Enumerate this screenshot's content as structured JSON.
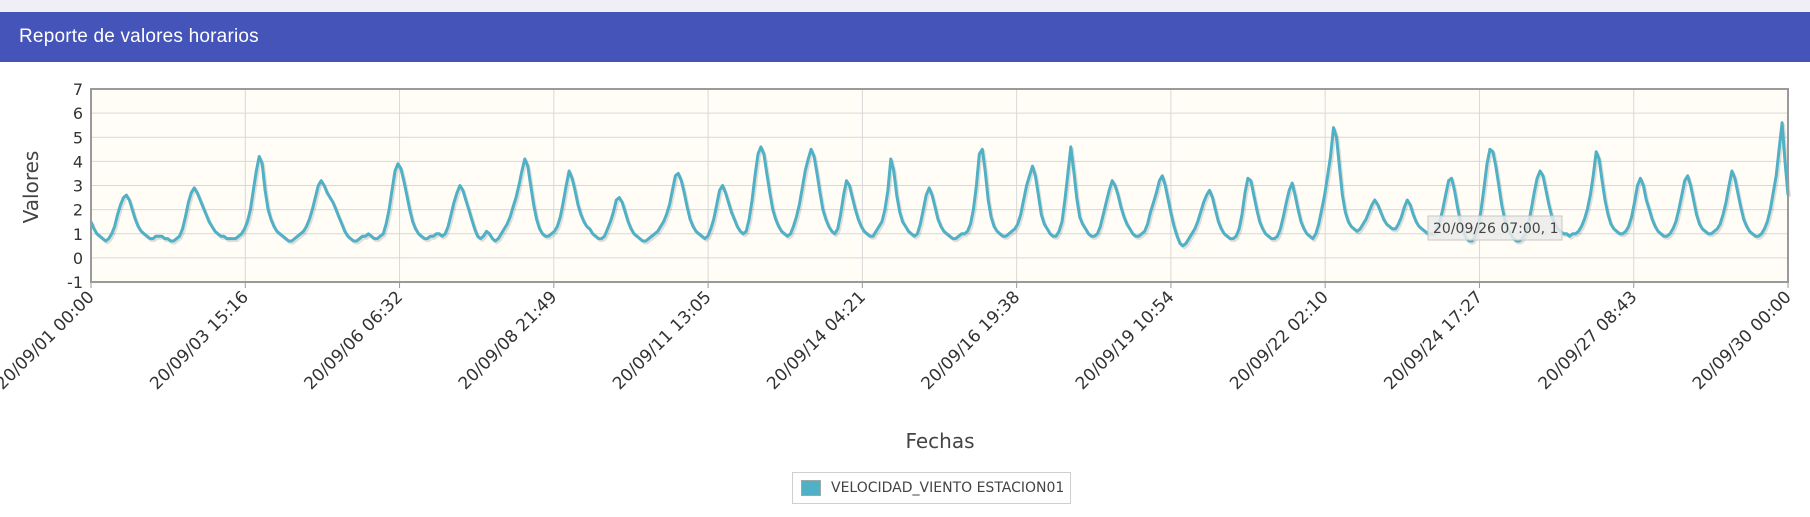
{
  "header": {
    "title": "Reporte de valores horarios"
  },
  "colors": {
    "header_bg": "#4454b8",
    "series": "#4fb0c6",
    "plot_bg": "#fffdf6",
    "grid": "#d8d8d8"
  },
  "chart_data": {
    "type": "line",
    "xlabel": "Fechas",
    "ylabel": "Valores",
    "ylim": [
      -1,
      7
    ],
    "yticks": [
      "-1",
      "0",
      "1",
      "2",
      "3",
      "4",
      "5",
      "6",
      "7"
    ],
    "xticks": [
      "20/09/01 00:00",
      "20/09/03 15:16",
      "20/09/06 06:32",
      "20/09/08 21:49",
      "20/09/11 13:05",
      "20/09/14 04:21",
      "20/09/16 19:38",
      "20/09/19 10:54",
      "20/09/22 02:10",
      "20/09/24 17:27",
      "20/09/27 08:43",
      "20/09/30 00:00"
    ],
    "xrange": [
      "20/09/01 00:00",
      "20/09/30 00:00"
    ],
    "grid": true,
    "legend_position": "bottom-center",
    "tooltip": {
      "text": "20/09/26 07:00, 1"
    },
    "series": [
      {
        "name": "VELOCIDAD_VIENTO ESTACION01",
        "daily_values": [
          [
            1.5,
            1.2,
            1.0,
            0.9,
            0.8,
            0.7,
            0.8,
            1.0,
            1.3,
            1.8,
            2.2,
            2.5,
            2.6,
            2.4,
            2.0,
            1.6,
            1.3,
            1.1,
            1.0,
            0.9,
            0.8,
            0.8,
            0.9,
            0.9
          ],
          [
            0.9,
            0.8,
            0.8,
            0.7,
            0.7,
            0.8,
            0.9,
            1.2,
            1.7,
            2.3,
            2.7,
            2.9,
            2.7,
            2.4,
            2.1,
            1.8,
            1.5,
            1.3,
            1.1,
            1.0,
            0.9,
            0.9,
            0.8,
            0.8
          ],
          [
            0.8,
            0.8,
            0.9,
            1.0,
            1.2,
            1.5,
            2.0,
            2.8,
            3.6,
            4.2,
            3.9,
            2.8,
            2.0,
            1.6,
            1.3,
            1.1,
            1.0,
            0.9,
            0.8,
            0.7,
            0.7,
            0.8,
            0.9,
            1.0
          ],
          [
            1.1,
            1.3,
            1.6,
            2.0,
            2.5,
            3.0,
            3.2,
            3.0,
            2.7,
            2.5,
            2.3,
            2.0,
            1.7,
            1.4,
            1.1,
            0.9,
            0.8,
            0.7,
            0.7,
            0.8,
            0.9,
            0.9,
            1.0,
            0.9
          ],
          [
            0.8,
            0.8,
            0.9,
            1.0,
            1.4,
            2.0,
            2.8,
            3.6,
            3.9,
            3.7,
            3.2,
            2.6,
            2.0,
            1.5,
            1.2,
            1.0,
            0.9,
            0.8,
            0.8,
            0.9,
            0.9,
            1.0,
            1.0,
            0.9
          ],
          [
            1.0,
            1.3,
            1.8,
            2.3,
            2.7,
            3.0,
            2.8,
            2.4,
            2.0,
            1.6,
            1.2,
            0.9,
            0.8,
            0.9,
            1.1,
            1.0,
            0.8,
            0.7,
            0.8,
            1.0,
            1.2,
            1.4,
            1.7,
            2.1
          ],
          [
            2.5,
            3.0,
            3.6,
            4.1,
            3.8,
            3.0,
            2.2,
            1.6,
            1.2,
            1.0,
            0.9,
            0.9,
            1.0,
            1.1,
            1.3,
            1.7,
            2.3,
            3.0,
            3.6,
            3.3,
            2.8,
            2.2,
            1.8,
            1.5
          ],
          [
            1.3,
            1.2,
            1.0,
            0.9,
            0.8,
            0.8,
            0.9,
            1.2,
            1.5,
            1.9,
            2.4,
            2.5,
            2.3,
            1.9,
            1.5,
            1.2,
            1.0,
            0.9,
            0.8,
            0.7,
            0.7,
            0.8,
            0.9,
            1.0
          ],
          [
            1.1,
            1.3,
            1.5,
            1.8,
            2.2,
            2.8,
            3.4,
            3.5,
            3.2,
            2.7,
            2.1,
            1.6,
            1.3,
            1.1,
            1.0,
            0.9,
            0.8,
            0.9,
            1.2,
            1.6,
            2.2,
            2.8,
            3.0,
            2.7
          ],
          [
            2.3,
            1.9,
            1.6,
            1.3,
            1.1,
            1.0,
            1.1,
            1.6,
            2.4,
            3.4,
            4.3,
            4.6,
            4.3,
            3.5,
            2.7,
            2.0,
            1.6,
            1.3,
            1.1,
            1.0,
            0.9,
            1.0,
            1.3,
            1.7
          ],
          [
            2.2,
            2.9,
            3.6,
            4.1,
            4.5,
            4.2,
            3.5,
            2.7,
            2.0,
            1.6,
            1.3,
            1.1,
            1.0,
            1.2,
            1.8,
            2.6,
            3.2,
            3.0,
            2.5,
            2.0,
            1.6,
            1.3,
            1.1,
            1.0
          ],
          [
            0.9,
            0.9,
            1.1,
            1.3,
            1.5,
            2.0,
            2.8,
            4.1,
            3.6,
            2.6,
            1.9,
            1.5,
            1.3,
            1.1,
            1.0,
            0.9,
            1.0,
            1.4,
            2.0,
            2.6,
            2.9,
            2.6,
            2.1,
            1.6
          ],
          [
            1.3,
            1.1,
            1.0,
            0.9,
            0.8,
            0.8,
            0.9,
            1.0,
            1.0,
            1.1,
            1.4,
            2.0,
            3.0,
            4.3,
            4.5,
            3.6,
            2.4,
            1.7,
            1.3,
            1.1,
            1.0,
            0.9,
            0.9,
            1.0
          ],
          [
            1.1,
            1.2,
            1.4,
            1.8,
            2.4,
            3.0,
            3.4,
            3.8,
            3.4,
            2.6,
            1.8,
            1.4,
            1.2,
            1.0,
            0.9,
            0.9,
            1.1,
            1.5,
            2.4,
            3.5,
            4.6,
            3.6,
            2.5,
            1.7
          ],
          [
            1.4,
            1.2,
            1.0,
            0.9,
            0.9,
            1.0,
            1.3,
            1.8,
            2.3,
            2.8,
            3.2,
            3.0,
            2.6,
            2.1,
            1.7,
            1.4,
            1.2,
            1.0,
            0.9,
            0.9,
            1.0,
            1.1,
            1.4,
            1.9
          ],
          [
            2.3,
            2.7,
            3.2,
            3.4,
            3.0,
            2.4,
            1.8,
            1.3,
            0.9,
            0.6,
            0.5,
            0.6,
            0.8,
            1.0,
            1.2,
            1.5,
            1.9,
            2.3,
            2.6,
            2.8,
            2.5,
            2.0,
            1.5,
            1.2
          ],
          [
            1.0,
            0.9,
            0.8,
            0.8,
            0.9,
            1.2,
            1.8,
            2.7,
            3.3,
            3.2,
            2.6,
            2.0,
            1.5,
            1.2,
            1.0,
            0.9,
            0.8,
            0.8,
            0.9,
            1.2,
            1.7,
            2.3,
            2.8,
            3.1
          ],
          [
            2.6,
            2.0,
            1.5,
            1.2,
            1.0,
            0.9,
            0.8,
            1.0,
            1.4,
            2.0,
            2.6,
            3.4,
            4.2,
            5.4,
            5.0,
            3.8,
            2.6,
            1.9,
            1.5,
            1.3,
            1.2,
            1.1,
            1.2,
            1.4
          ],
          [
            1.6,
            1.9,
            2.2,
            2.4,
            2.2,
            1.9,
            1.6,
            1.4,
            1.3,
            1.2,
            1.2,
            1.4,
            1.7,
            2.1,
            2.4,
            2.2,
            1.8,
            1.5,
            1.3,
            1.2,
            1.1,
            1.0,
            1.0,
            1.0
          ],
          [
            1.2,
            1.5,
            2.0,
            2.6,
            3.2,
            3.3,
            2.8,
            2.1,
            1.5,
            1.1,
            0.8,
            0.7,
            0.7,
            0.9,
            1.3,
            2.0,
            2.9,
            3.9,
            4.5,
            4.4,
            3.8,
            3.0,
            2.2,
            1.6
          ],
          [
            1.2,
            1.0,
            0.8,
            0.7,
            0.7,
            0.8,
            1.0,
            1.4,
            2.0,
            2.7,
            3.3,
            3.6,
            3.4,
            2.8,
            2.2,
            1.7,
            1.4,
            1.2,
            1.1,
            1.0,
            1.0,
            0.9,
            1.0,
            1.0
          ],
          [
            1.1,
            1.3,
            1.6,
            2.0,
            2.6,
            3.4,
            4.4,
            4.1,
            3.2,
            2.4,
            1.8,
            1.4,
            1.2,
            1.1,
            1.0,
            1.0,
            1.1,
            1.3,
            1.7,
            2.3,
            3.0,
            3.3,
            3.0,
            2.4
          ],
          [
            2.0,
            1.6,
            1.3,
            1.1,
            1.0,
            0.9,
            0.9,
            1.0,
            1.2,
            1.5,
            2.0,
            2.6,
            3.2,
            3.4,
            3.0,
            2.4,
            1.8,
            1.4,
            1.2,
            1.1,
            1.0,
            1.0,
            1.1,
            1.2
          ],
          [
            1.4,
            1.8,
            2.3,
            3.0,
            3.6,
            3.3,
            2.7,
            2.1,
            1.6,
            1.3,
            1.1,
            1.0,
            0.9,
            0.9,
            1.0,
            1.2,
            1.5,
            2.0,
            2.7,
            3.4,
            4.5,
            5.6,
            4.0,
            2.6
          ]
        ]
      }
    ]
  }
}
